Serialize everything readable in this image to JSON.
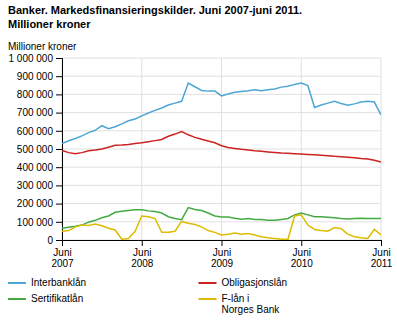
{
  "chart_data": {
    "type": "line",
    "title": "Banker. Markedsfinansieringskilder. Juni 2007-juni 2011.",
    "subtitle": "Millioner kroner",
    "y_label": "Millioner kroner",
    "categories": [
      "Juni\n2007",
      null,
      null,
      null,
      null,
      null,
      null,
      null,
      null,
      null,
      null,
      null,
      "Juni\n2008",
      null,
      null,
      null,
      null,
      null,
      null,
      null,
      null,
      null,
      null,
      null,
      "Juni\n2009",
      null,
      null,
      null,
      null,
      null,
      null,
      null,
      null,
      null,
      null,
      null,
      "Juni\n2010",
      null,
      null,
      null,
      null,
      null,
      null,
      null,
      null,
      null,
      null,
      null,
      "Juni\n2011"
    ],
    "ylim": [
      0,
      1000000
    ],
    "yticks": [
      0,
      {
        "value": 100000,
        "label": "100 000"
      },
      {
        "value": 200000,
        "label": "200 000"
      },
      {
        "value": 300000,
        "label": "300 000"
      },
      {
        "value": 400000,
        "label": "400 000"
      },
      {
        "value": 500000,
        "label": "500 000"
      },
      {
        "value": 600000,
        "label": "600 000"
      },
      {
        "value": 700000,
        "label": "700 000"
      },
      {
        "value": 800000,
        "label": "800 000"
      },
      {
        "value": 900000,
        "label": "900 000"
      },
      {
        "value": 1000000,
        "label": "1 000 000"
      }
    ],
    "grid": true,
    "legend": "bottom",
    "series": [
      {
        "name": "Interbanklån",
        "color": "#4da6d4",
        "values": [
          530000,
          545000,
          558000,
          572000,
          590000,
          603000,
          628000,
          612000,
          622000,
          638000,
          655000,
          665000,
          682000,
          698000,
          712000,
          725000,
          742000,
          752000,
          762000,
          862000,
          842000,
          822000,
          818000,
          818000,
          792000,
          802000,
          812000,
          816000,
          820000,
          826000,
          820000,
          825000,
          830000,
          840000,
          845000,
          855000,
          862000,
          848000,
          728000,
          742000,
          752000,
          762000,
          750000,
          740000,
          748000,
          758000,
          762000,
          758000,
          688000
        ]
      },
      {
        "name": "Obligasjonslån",
        "color": "#cc2222",
        "values": [
          492000,
          480000,
          474000,
          480000,
          490000,
          494000,
          500000,
          510000,
          520000,
          522000,
          525000,
          530000,
          534000,
          540000,
          546000,
          552000,
          570000,
          582000,
          596000,
          578000,
          564000,
          554000,
          544000,
          534000,
          518000,
          508000,
          503000,
          498000,
          494000,
          490000,
          487000,
          484000,
          481000,
          478000,
          476000,
          474000,
          472000,
          470000,
          468000,
          466000,
          463000,
          460000,
          458000,
          455000,
          452000,
          448000,
          445000,
          438000,
          428000
        ]
      },
      {
        "name": "Sertifikatlån",
        "color": "#44aa44",
        "values": [
          65000,
          70000,
          75000,
          82000,
          98000,
          108000,
          122000,
          132000,
          152000,
          158000,
          162000,
          166000,
          166000,
          160000,
          156000,
          148000,
          128000,
          118000,
          112000,
          178000,
          168000,
          162000,
          148000,
          132000,
          126000,
          126000,
          120000,
          114000,
          118000,
          113000,
          112000,
          108000,
          108000,
          113000,
          118000,
          138000,
          148000,
          138000,
          128000,
          128000,
          125000,
          122000,
          118000,
          116000,
          118000,
          120000,
          118000,
          118000,
          118000
        ]
      },
      {
        "name": "F-lån i\nNorges Bank",
        "color": "#ddbb00",
        "values": [
          48000,
          52000,
          72000,
          82000,
          80000,
          88000,
          78000,
          65000,
          55000,
          4000,
          8000,
          48000,
          132000,
          128000,
          118000,
          42000,
          42000,
          48000,
          102000,
          92000,
          85000,
          72000,
          52000,
          42000,
          28000,
          32000,
          38000,
          32000,
          36000,
          28000,
          18000,
          12000,
          8000,
          4000,
          4000,
          132000,
          138000,
          82000,
          58000,
          52000,
          48000,
          68000,
          62000,
          32000,
          18000,
          12000,
          8000,
          58000,
          28000
        ]
      }
    ]
  }
}
